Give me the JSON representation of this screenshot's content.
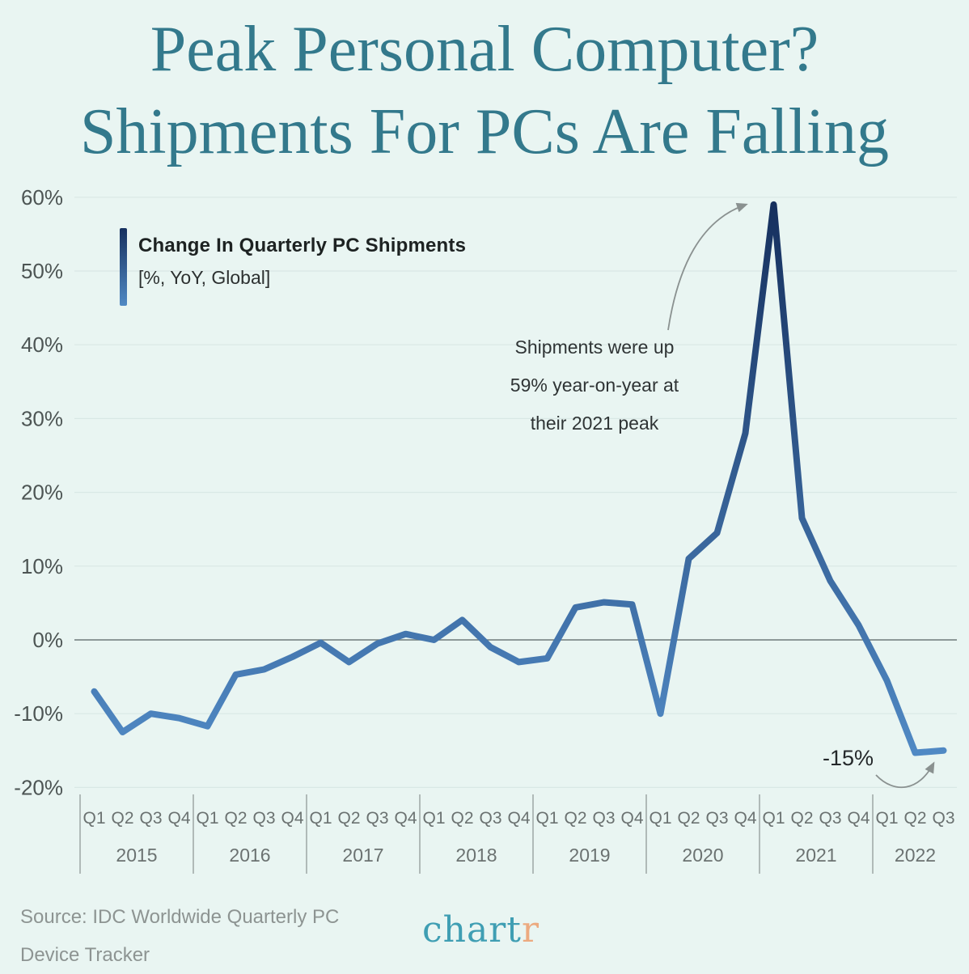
{
  "title": {
    "line1": "Peak Personal Computer?",
    "line2": "Shipments For PCs Are Falling"
  },
  "legend": {
    "title": "Change In Quarterly PC Shipments",
    "subtitle": "[%, YoY, Global]"
  },
  "annotations": {
    "peak": {
      "line1": "Shipments were up",
      "line2": "59% year-on-year at",
      "line3": "their 2021 peak"
    },
    "latest": "-15%"
  },
  "footer": {
    "source_line1": "Source: IDC Worldwide Quarterly PC",
    "source_line2": "Device Tracker",
    "logo_main": "chart",
    "logo_accent": "r"
  },
  "colors": {
    "background": "#e9f5f2",
    "title_teal": "#33798c",
    "line_top": "#16305e",
    "line_bottom": "#5089c4",
    "arrow_gray": "#8a9190",
    "logo_teal": "#3f9eb3",
    "logo_orange": "#ecaa80"
  },
  "chart_data": {
    "type": "line",
    "title": "Change In Quarterly PC Shipments",
    "unit": "%, YoY, Global",
    "categories": [
      "Q1 2015",
      "Q2 2015",
      "Q3 2015",
      "Q4 2015",
      "Q1 2016",
      "Q2 2016",
      "Q3 2016",
      "Q4 2016",
      "Q1 2017",
      "Q2 2017",
      "Q3 2017",
      "Q4 2017",
      "Q1 2018",
      "Q2 2018",
      "Q3 2018",
      "Q4 2018",
      "Q1 2019",
      "Q2 2019",
      "Q3 2019",
      "Q4 2019",
      "Q1 2020",
      "Q2 2020",
      "Q3 2020",
      "Q4 2020",
      "Q1 2021",
      "Q2 2021",
      "Q3 2021",
      "Q4 2021",
      "Q1 2022",
      "Q2 2022",
      "Q3 2022"
    ],
    "values": [
      -7,
      -12.5,
      -10,
      -10.6,
      -11.7,
      -4.7,
      -4,
      -2.3,
      -0.4,
      -3,
      -0.5,
      0.8,
      0,
      2.7,
      -1,
      -3,
      -2.5,
      4.4,
      5.1,
      4.8,
      -10,
      11,
      14.5,
      28,
      59,
      16.5,
      8,
      2,
      -5.5,
      -15.3,
      -15
    ],
    "years": [
      {
        "label": "2015",
        "quarters": [
          "Q1",
          "Q2",
          "Q3",
          "Q4"
        ]
      },
      {
        "label": "2016",
        "quarters": [
          "Q1",
          "Q2",
          "Q3",
          "Q4"
        ]
      },
      {
        "label": "2017",
        "quarters": [
          "Q1",
          "Q2",
          "Q3",
          "Q4"
        ]
      },
      {
        "label": "2018",
        "quarters": [
          "Q1",
          "Q2",
          "Q3",
          "Q4"
        ]
      },
      {
        "label": "2019",
        "quarters": [
          "Q1",
          "Q2",
          "Q3",
          "Q4"
        ]
      },
      {
        "label": "2020",
        "quarters": [
          "Q1",
          "Q2",
          "Q3",
          "Q4"
        ]
      },
      {
        "label": "2021",
        "quarters": [
          "Q1",
          "Q2",
          "Q3",
          "Q4"
        ]
      },
      {
        "label": "2022",
        "quarters": [
          "Q1",
          "Q2",
          "Q3"
        ]
      }
    ],
    "y_ticks": [
      {
        "value": 60,
        "label": "60%"
      },
      {
        "value": 50,
        "label": "50%"
      },
      {
        "value": 40,
        "label": "40%"
      },
      {
        "value": 30,
        "label": "30%"
      },
      {
        "value": 20,
        "label": "20%"
      },
      {
        "value": 10,
        "label": "10%"
      },
      {
        "value": 0,
        "label": "0%"
      },
      {
        "value": -10,
        "label": "-10%"
      },
      {
        "value": -20,
        "label": "-20%"
      }
    ],
    "ylim": [
      -20,
      60
    ],
    "grid": true,
    "legend_position": "top-left",
    "peak_value": 59,
    "latest_value": -15
  }
}
